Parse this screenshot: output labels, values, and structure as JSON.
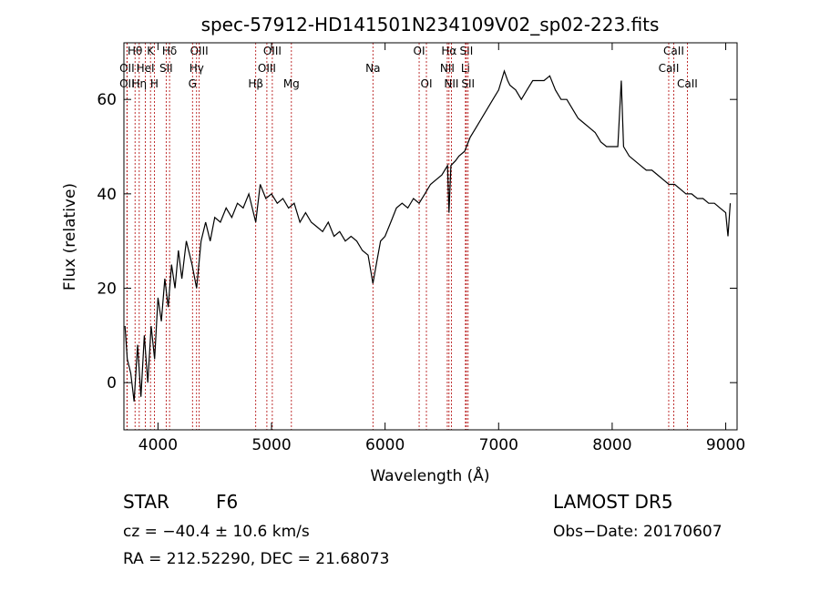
{
  "chart_data": {
    "type": "line",
    "title": "spec-57912-HD141501N234109V02_sp02-223.fits",
    "xlabel": "Wavelength (Å)",
    "ylabel": "Flux (relative)",
    "xlim": [
      3700,
      9100
    ],
    "ylim": [
      -10,
      72
    ],
    "xticks": [
      4000,
      5000,
      6000,
      7000,
      8000,
      9000
    ],
    "xtick_labels": [
      "4000",
      "5000",
      "6000",
      "7000",
      "8000",
      "9000"
    ],
    "yticks": [
      0,
      20,
      40,
      60
    ],
    "ytick_labels": [
      "0",
      "20",
      "40",
      "60"
    ],
    "grid": false,
    "series": [
      {
        "points": [
          [
            3710,
            12
          ],
          [
            3730,
            5
          ],
          [
            3760,
            2
          ],
          [
            3790,
            -4
          ],
          [
            3820,
            8
          ],
          [
            3850,
            -3
          ],
          [
            3880,
            10
          ],
          [
            3910,
            0
          ],
          [
            3940,
            12
          ],
          [
            3970,
            5
          ],
          [
            4000,
            18
          ],
          [
            4030,
            13
          ],
          [
            4060,
            22
          ],
          [
            4090,
            16
          ],
          [
            4120,
            25
          ],
          [
            4150,
            20
          ],
          [
            4180,
            28
          ],
          [
            4210,
            22
          ],
          [
            4250,
            30
          ],
          [
            4300,
            25
          ],
          [
            4340,
            20
          ],
          [
            4380,
            30
          ],
          [
            4420,
            34
          ],
          [
            4460,
            30
          ],
          [
            4500,
            35
          ],
          [
            4550,
            34
          ],
          [
            4600,
            37
          ],
          [
            4650,
            35
          ],
          [
            4700,
            38
          ],
          [
            4750,
            37
          ],
          [
            4800,
            40
          ],
          [
            4861,
            34
          ],
          [
            4900,
            42
          ],
          [
            4950,
            39
          ],
          [
            5000,
            40
          ],
          [
            5050,
            38
          ],
          [
            5100,
            39
          ],
          [
            5150,
            37
          ],
          [
            5200,
            38
          ],
          [
            5250,
            34
          ],
          [
            5300,
            36
          ],
          [
            5350,
            34
          ],
          [
            5400,
            33
          ],
          [
            5450,
            32
          ],
          [
            5500,
            34
          ],
          [
            5550,
            31
          ],
          [
            5600,
            32
          ],
          [
            5650,
            30
          ],
          [
            5700,
            31
          ],
          [
            5750,
            30
          ],
          [
            5800,
            28
          ],
          [
            5850,
            27
          ],
          [
            5893,
            21
          ],
          [
            5930,
            26
          ],
          [
            5960,
            30
          ],
          [
            6000,
            31
          ],
          [
            6050,
            34
          ],
          [
            6100,
            37
          ],
          [
            6150,
            38
          ],
          [
            6200,
            37
          ],
          [
            6250,
            39
          ],
          [
            6300,
            38
          ],
          [
            6350,
            40
          ],
          [
            6400,
            42
          ],
          [
            6450,
            43
          ],
          [
            6500,
            44
          ],
          [
            6550,
            46
          ],
          [
            6563,
            36
          ],
          [
            6580,
            46
          ],
          [
            6620,
            47
          ],
          [
            6650,
            48
          ],
          [
            6700,
            49
          ],
          [
            6750,
            52
          ],
          [
            6800,
            54
          ],
          [
            6850,
            56
          ],
          [
            6900,
            58
          ],
          [
            6950,
            60
          ],
          [
            7000,
            62
          ],
          [
            7050,
            66
          ],
          [
            7080,
            64
          ],
          [
            7100,
            63
          ],
          [
            7150,
            62
          ],
          [
            7200,
            60
          ],
          [
            7250,
            62
          ],
          [
            7300,
            64
          ],
          [
            7350,
            64
          ],
          [
            7400,
            64
          ],
          [
            7450,
            65
          ],
          [
            7500,
            62
          ],
          [
            7550,
            60
          ],
          [
            7600,
            60
          ],
          [
            7650,
            58
          ],
          [
            7700,
            56
          ],
          [
            7750,
            55
          ],
          [
            7800,
            54
          ],
          [
            7850,
            53
          ],
          [
            7900,
            51
          ],
          [
            7950,
            50
          ],
          [
            8000,
            50
          ],
          [
            8050,
            50
          ],
          [
            8080,
            64
          ],
          [
            8100,
            50
          ],
          [
            8150,
            48
          ],
          [
            8200,
            47
          ],
          [
            8250,
            46
          ],
          [
            8300,
            45
          ],
          [
            8350,
            45
          ],
          [
            8400,
            44
          ],
          [
            8450,
            43
          ],
          [
            8500,
            42
          ],
          [
            8550,
            42
          ],
          [
            8600,
            41
          ],
          [
            8650,
            40
          ],
          [
            8700,
            40
          ],
          [
            8750,
            39
          ],
          [
            8800,
            39
          ],
          [
            8850,
            38
          ],
          [
            8900,
            38
          ],
          [
            8950,
            37
          ],
          [
            9000,
            36
          ],
          [
            9020,
            31
          ],
          [
            9040,
            38
          ]
        ]
      }
    ],
    "spectral_lines": [
      {
        "label": "Hθ",
        "wavelength": 3798,
        "row": 0
      },
      {
        "label": "K",
        "wavelength": 3934,
        "row": 0
      },
      {
        "label": "Hδ",
        "wavelength": 4102,
        "row": 0
      },
      {
        "label": "OIII",
        "wavelength": 4363,
        "row": 0
      },
      {
        "label": "OIII",
        "wavelength": 5007,
        "row": 0
      },
      {
        "label": "OI",
        "wavelength": 6300,
        "row": 0
      },
      {
        "label": "Hα",
        "wavelength": 6563,
        "row": 0
      },
      {
        "label": "SII",
        "wavelength": 6716,
        "row": 0
      },
      {
        "label": "CaII",
        "wavelength": 8542,
        "row": 0
      },
      {
        "label": "OII",
        "wavelength": 3727,
        "row": 1
      },
      {
        "label": "HeI",
        "wavelength": 3889,
        "row": 1
      },
      {
        "label": "SII",
        "wavelength": 4072,
        "row": 1
      },
      {
        "label": "Hγ",
        "wavelength": 4340,
        "row": 1
      },
      {
        "label": "OIII",
        "wavelength": 4959,
        "row": 1
      },
      {
        "label": "Na",
        "wavelength": 5893,
        "row": 1
      },
      {
        "label": "NII",
        "wavelength": 6548,
        "row": 1
      },
      {
        "label": "Li",
        "wavelength": 6708,
        "row": 1
      },
      {
        "label": "CaII",
        "wavelength": 8498,
        "row": 1
      },
      {
        "label": "OII",
        "wavelength": 3727,
        "row": 2
      },
      {
        "label": "Hη",
        "wavelength": 3835,
        "row": 2
      },
      {
        "label": "H",
        "wavelength": 3968,
        "row": 2
      },
      {
        "label": "G",
        "wavelength": 4304,
        "row": 2
      },
      {
        "label": "Hβ",
        "wavelength": 4861,
        "row": 2
      },
      {
        "label": "Mg",
        "wavelength": 5175,
        "row": 2
      },
      {
        "label": "OI",
        "wavelength": 6364,
        "row": 2
      },
      {
        "label": "NII",
        "wavelength": 6584,
        "row": 2
      },
      {
        "label": "SII",
        "wavelength": 6731,
        "row": 2
      },
      {
        "label": "CaII",
        "wavelength": 8662,
        "row": 2
      }
    ]
  },
  "info": {
    "object_class": "STAR",
    "subclass": "F6",
    "survey": "LAMOST DR5",
    "cz": "cz = −40.4 ± 10.6 km/s",
    "obs_date": "Obs−Date: 20170607",
    "coords": "RA = 212.52290, DEC =  21.68073"
  }
}
